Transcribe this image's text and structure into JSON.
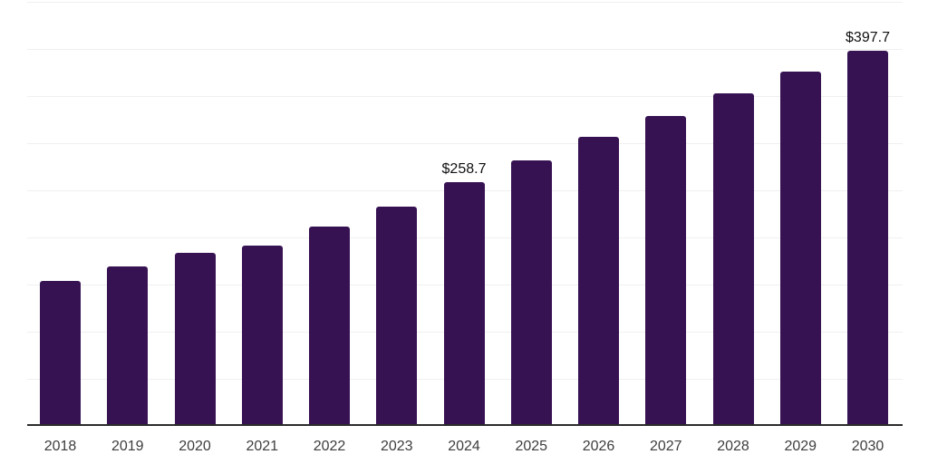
{
  "chart_data": {
    "type": "bar",
    "title": "",
    "xlabel": "",
    "ylabel": "",
    "categories": [
      "2018",
      "2019",
      "2020",
      "2021",
      "2022",
      "2023",
      "2024",
      "2025",
      "2026",
      "2027",
      "2028",
      "2029",
      "2030"
    ],
    "values": [
      153.5,
      169.2,
      184.0,
      191.1,
      211.4,
      232.6,
      258.7,
      281.6,
      306.5,
      328.4,
      352.9,
      375.8,
      397.7
    ],
    "data_labels": {
      "2024": "$258.7",
      "2030": "$397.7"
    },
    "ylim": [
      0,
      450
    ],
    "grid_step": 50,
    "grid": "horizontal-only",
    "y_axis_tick_labels_visible": false,
    "legend_position": "none"
  },
  "colors": {
    "bar": "#371253",
    "grid_line": "#f0f0f0",
    "axis_line": "#2b2b2b",
    "tick_label": "#3d3d3d",
    "data_label": "#101010",
    "background": "#ffffff"
  }
}
